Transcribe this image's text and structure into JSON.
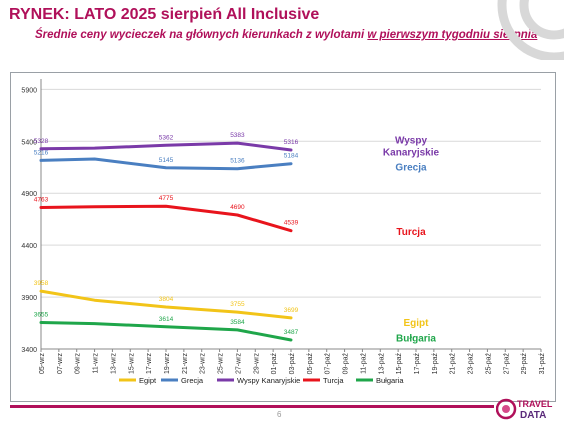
{
  "header": {
    "title": "RYNEK: LATO 2025 sierpień All Inclusive",
    "subtitle_main": "Średnie ceny wycieczek na głównych kierunkach z wylotami ",
    "subtitle_underlined": "w pierwszym tygodniu sierpnia"
  },
  "footer": {
    "page_number": "6",
    "logo_text_1": "TRAVEL",
    "logo_text_2": "DATA"
  },
  "chart_data": {
    "type": "line",
    "ylim": [
      3400,
      6000
    ],
    "yticks": [
      3400,
      3900,
      4400,
      4900,
      5400,
      5900
    ],
    "grid": "horizontal",
    "legend_position": "bottom",
    "categories": [
      "05-wrz",
      "07-wrz",
      "09-wrz",
      "11-wrz",
      "13-wrz",
      "15-wrz",
      "17-wrz",
      "19-wrz",
      "21-wrz",
      "23-wrz",
      "25-wrz",
      "27-wrz",
      "29-wrz",
      "01-paź",
      "03-paź",
      "05-paź",
      "07-paź",
      "09-paź",
      "11-paź",
      "13-paź",
      "15-paź",
      "17-paź",
      "19-paź",
      "21-paź",
      "23-paź",
      "25-paź",
      "27-paź",
      "29-paź",
      "31-paź"
    ],
    "series": [
      {
        "name": "Egipt",
        "color": "#f2c418",
        "label": "Egipt",
        "points": [
          [
            0,
            3958
          ],
          [
            3,
            3870
          ],
          [
            7,
            3804
          ],
          [
            11,
            3755
          ],
          [
            14,
            3699
          ]
        ],
        "data_labels": [
          [
            0,
            3958
          ],
          [
            7,
            3804
          ],
          [
            11,
            3755
          ],
          [
            14,
            3699
          ]
        ]
      },
      {
        "name": "Grecja",
        "color": "#4a7fc1",
        "label": "Grecja",
        "points": [
          [
            0,
            5216
          ],
          [
            3,
            5230
          ],
          [
            7,
            5145
          ],
          [
            11,
            5136
          ],
          [
            14,
            5184
          ]
        ],
        "data_labels": [
          [
            0,
            5216
          ],
          [
            7,
            5145
          ],
          [
            11,
            5136
          ],
          [
            14,
            5184
          ]
        ]
      },
      {
        "name": "Wyspy Kanaryjskie",
        "color": "#7a3aa8",
        "label": "Wyspy Kanaryjskie",
        "points": [
          [
            0,
            5328
          ],
          [
            3,
            5335
          ],
          [
            7,
            5362
          ],
          [
            11,
            5383
          ],
          [
            14,
            5316
          ]
        ],
        "data_labels": [
          [
            0,
            5328
          ],
          [
            7,
            5362
          ],
          [
            11,
            5383
          ],
          [
            14,
            5316
          ]
        ]
      },
      {
        "name": "Turcja",
        "color": "#e8141c",
        "label": "Turcja",
        "points": [
          [
            0,
            4763
          ],
          [
            3,
            4770
          ],
          [
            7,
            4775
          ],
          [
            11,
            4690
          ],
          [
            14,
            4539
          ]
        ],
        "data_labels": [
          [
            0,
            4763
          ],
          [
            7,
            4775
          ],
          [
            11,
            4690
          ],
          [
            14,
            4539
          ]
        ]
      },
      {
        "name": "Bułgaria",
        "color": "#1fa64a",
        "label": "Bułgaria",
        "points": [
          [
            0,
            3655
          ],
          [
            3,
            3645
          ],
          [
            7,
            3614
          ],
          [
            11,
            3584
          ],
          [
            14,
            3487
          ]
        ],
        "data_labels": [
          [
            0,
            3655
          ],
          [
            7,
            3614
          ],
          [
            11,
            3584
          ],
          [
            14,
            3487
          ]
        ]
      }
    ]
  }
}
